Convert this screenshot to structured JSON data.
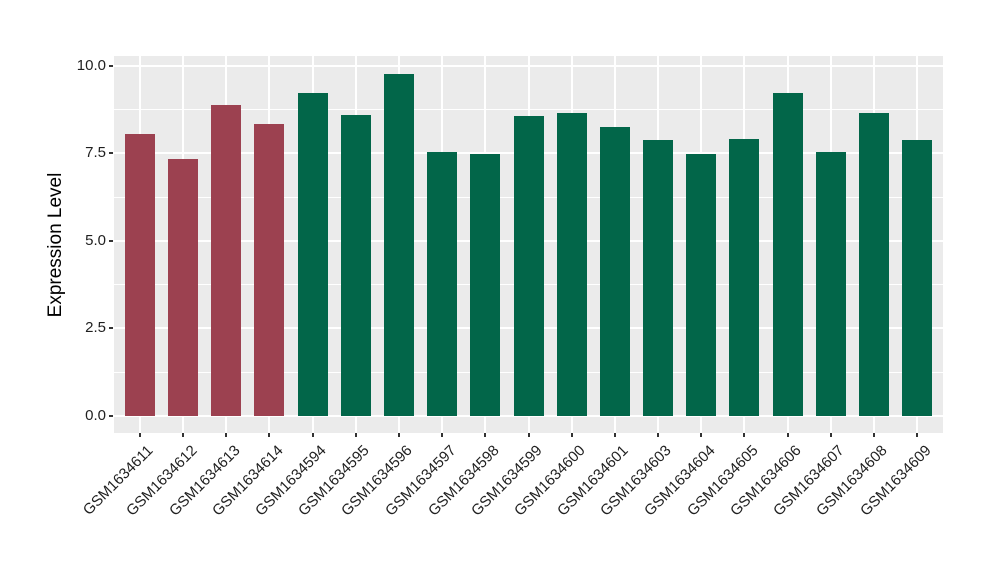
{
  "figure": {
    "background": "#FFFFFF",
    "panel_background": "#EBEBEB",
    "grid_color": "#FFFFFF",
    "axis_text_color": "#1F1F1F",
    "tick_mark_color": "#333333"
  },
  "chart_data": {
    "type": "bar",
    "title": "",
    "xlabel": "",
    "ylabel": "Expression Level",
    "categories": [
      "GSM1634611",
      "GSM1634612",
      "GSM1634613",
      "GSM1634614",
      "GSM1634594",
      "GSM1634595",
      "GSM1634596",
      "GSM1634597",
      "GSM1634598",
      "GSM1634599",
      "GSM1634600",
      "GSM1634601",
      "GSM1634603",
      "GSM1634604",
      "GSM1634605",
      "GSM1634606",
      "GSM1634607",
      "GSM1634608",
      "GSM1634609"
    ],
    "values": [
      8.06,
      7.35,
      8.87,
      8.34,
      9.23,
      8.59,
      9.76,
      7.54,
      7.47,
      8.56,
      8.64,
      8.26,
      7.88,
      7.49,
      7.91,
      9.22,
      7.55,
      8.65,
      7.88
    ],
    "groups": [
      "maroon",
      "maroon",
      "maroon",
      "maroon",
      "green",
      "green",
      "green",
      "green",
      "green",
      "green",
      "green",
      "green",
      "green",
      "green",
      "green",
      "green",
      "green",
      "green",
      "green"
    ],
    "palette": {
      "maroon": "#9C4150",
      "green": "#026649"
    },
    "ylim": [
      0,
      10.3
    ],
    "yticks_major": [
      0,
      2.5,
      5,
      7.5,
      10
    ],
    "ytick_labels": [
      "0.0",
      "2.5",
      "5.0",
      "7.5",
      "10.0"
    ],
    "yticks_minor": [
      1.25,
      3.75,
      6.25,
      8.75
    ],
    "grid": true,
    "legend": false
  }
}
